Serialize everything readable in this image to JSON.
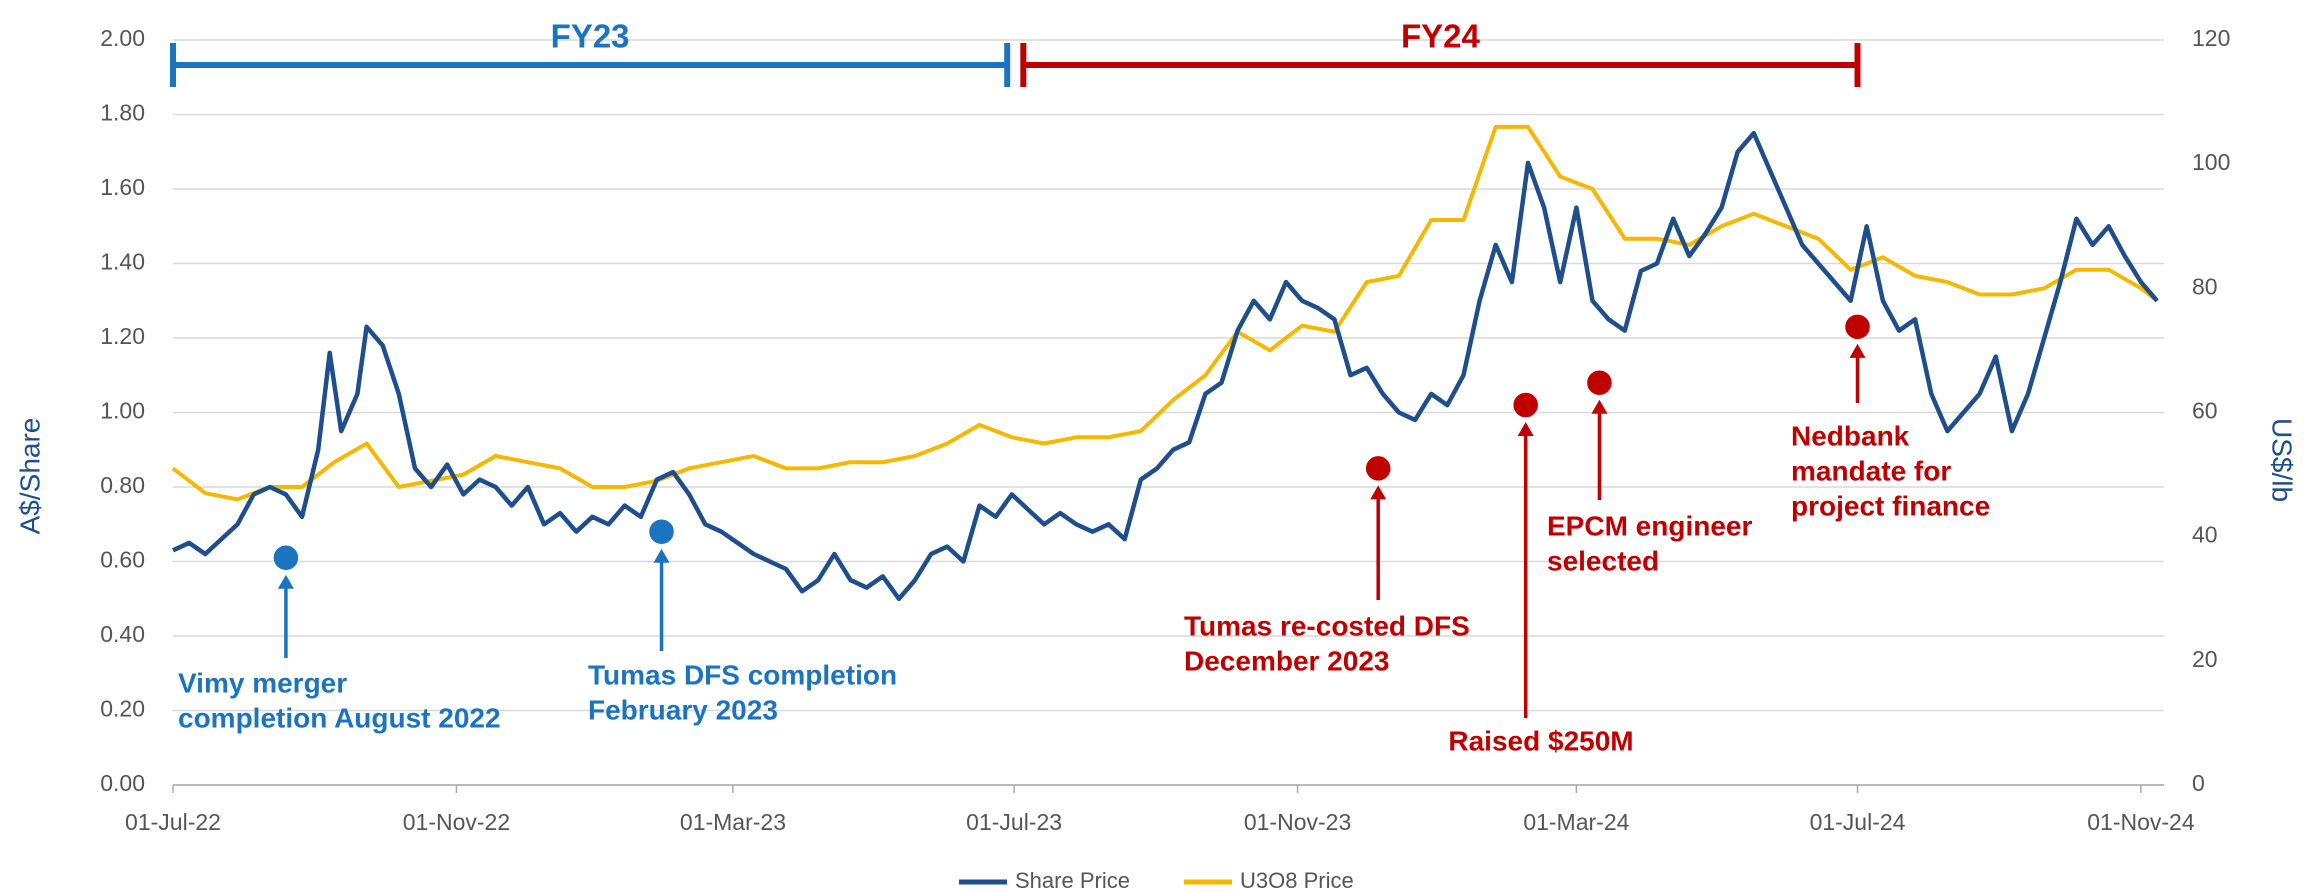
{
  "chart_data": {
    "type": "line",
    "ylabel": "A$/Share",
    "y2label": "US$/lb",
    "xlim": [
      "2022-07-01",
      "2024-11-11"
    ],
    "xticks": [
      {
        "value": "2022-07-01",
        "label": "01-Jul-22"
      },
      {
        "value": "2022-11-01",
        "label": "01-Nov-22"
      },
      {
        "value": "2023-03-01",
        "label": "01-Mar-23"
      },
      {
        "value": "2023-07-01",
        "label": "01-Jul-23"
      },
      {
        "value": "2023-11-01",
        "label": "01-Nov-23"
      },
      {
        "value": "2024-03-01",
        "label": "01-Mar-24"
      },
      {
        "value": "2024-07-01",
        "label": "01-Jul-24"
      },
      {
        "value": "2024-11-01",
        "label": "01-Nov-24"
      }
    ],
    "ylim": [
      0,
      2
    ],
    "yticks": [
      {
        "value": 0,
        "label": "0.00"
      },
      {
        "value": 0.2,
        "label": "0.20"
      },
      {
        "value": 0.4,
        "label": "0.40"
      },
      {
        "value": 0.6,
        "label": "0.60"
      },
      {
        "value": 0.8,
        "label": "0.80"
      },
      {
        "value": 1,
        "label": "1.00"
      },
      {
        "value": 1.2,
        "label": "1.20"
      },
      {
        "value": 1.4,
        "label": "1.40"
      },
      {
        "value": 1.6,
        "label": "1.60"
      },
      {
        "value": 1.8,
        "label": "1.80"
      },
      {
        "value": 2,
        "label": "2.00"
      }
    ],
    "y2lim": [
      0,
      120
    ],
    "y2ticks": [
      0,
      20,
      40,
      60,
      80,
      100,
      120
    ],
    "grid": true,
    "legend": "bottom",
    "series": [
      {
        "name": "Share Price",
        "color": "#1f4e8c",
        "axis": "y",
        "x": [
          "2022-07-01",
          "2022-07-08",
          "2022-07-15",
          "2022-07-22",
          "2022-07-29",
          "2022-08-05",
          "2022-08-12",
          "2022-08-19",
          "2022-08-26",
          "2022-09-02",
          "2022-09-07",
          "2022-09-12",
          "2022-09-19",
          "2022-09-23",
          "2022-09-30",
          "2022-10-07",
          "2022-10-14",
          "2022-10-21",
          "2022-10-28",
          "2022-11-04",
          "2022-11-11",
          "2022-11-18",
          "2022-11-25",
          "2022-12-02",
          "2022-12-09",
          "2022-12-16",
          "2022-12-23",
          "2022-12-30",
          "2023-01-06",
          "2023-01-13",
          "2023-01-20",
          "2023-01-27",
          "2023-02-03",
          "2023-02-10",
          "2023-02-17",
          "2023-02-24",
          "2023-03-03",
          "2023-03-10",
          "2023-03-17",
          "2023-03-24",
          "2023-03-31",
          "2023-04-07",
          "2023-04-14",
          "2023-04-21",
          "2023-04-28",
          "2023-05-05",
          "2023-05-12",
          "2023-05-19",
          "2023-05-26",
          "2023-06-02",
          "2023-06-09",
          "2023-06-16",
          "2023-06-23",
          "2023-06-30",
          "2023-07-07",
          "2023-07-14",
          "2023-07-21",
          "2023-07-28",
          "2023-08-04",
          "2023-08-11",
          "2023-08-18",
          "2023-08-25",
          "2023-09-01",
          "2023-09-08",
          "2023-09-15",
          "2023-09-22",
          "2023-09-29",
          "2023-10-06",
          "2023-10-13",
          "2023-10-20",
          "2023-10-27",
          "2023-11-03",
          "2023-11-10",
          "2023-11-17",
          "2023-11-24",
          "2023-12-01",
          "2023-12-08",
          "2023-12-15",
          "2023-12-22",
          "2023-12-29",
          "2024-01-05",
          "2024-01-12",
          "2024-01-19",
          "2024-01-26",
          "2024-02-02",
          "2024-02-09",
          "2024-02-16",
          "2024-02-23",
          "2024-03-01",
          "2024-03-08",
          "2024-03-15",
          "2024-03-22",
          "2024-03-29",
          "2024-04-05",
          "2024-04-12",
          "2024-04-19",
          "2024-04-26",
          "2024-05-03",
          "2024-05-10",
          "2024-05-17",
          "2024-05-24",
          "2024-05-31",
          "2024-06-07",
          "2024-06-14",
          "2024-06-21",
          "2024-06-28",
          "2024-07-05",
          "2024-07-12",
          "2024-07-19",
          "2024-07-26",
          "2024-08-02",
          "2024-08-09",
          "2024-08-16",
          "2024-08-23",
          "2024-08-30",
          "2024-09-06",
          "2024-09-13",
          "2024-09-20",
          "2024-09-27",
          "2024-10-04",
          "2024-10-11",
          "2024-10-18",
          "2024-10-25",
          "2024-11-01",
          "2024-11-08"
        ],
        "values": [
          0.63,
          0.65,
          0.62,
          0.66,
          0.7,
          0.78,
          0.8,
          0.78,
          0.72,
          0.9,
          1.16,
          0.95,
          1.05,
          1.23,
          1.18,
          1.05,
          0.85,
          0.8,
          0.86,
          0.78,
          0.82,
          0.8,
          0.75,
          0.8,
          0.7,
          0.73,
          0.68,
          0.72,
          0.7,
          0.75,
          0.72,
          0.82,
          0.84,
          0.78,
          0.7,
          0.68,
          0.65,
          0.62,
          0.6,
          0.58,
          0.52,
          0.55,
          0.62,
          0.55,
          0.53,
          0.56,
          0.5,
          0.55,
          0.62,
          0.64,
          0.6,
          0.75,
          0.72,
          0.78,
          0.74,
          0.7,
          0.73,
          0.7,
          0.68,
          0.7,
          0.66,
          0.82,
          0.85,
          0.9,
          0.92,
          1.05,
          1.08,
          1.22,
          1.3,
          1.25,
          1.35,
          1.3,
          1.28,
          1.25,
          1.1,
          1.12,
          1.05,
          1.0,
          0.98,
          1.05,
          1.02,
          1.1,
          1.3,
          1.45,
          1.35,
          1.67,
          1.55,
          1.35,
          1.55,
          1.3,
          1.25,
          1.22,
          1.38,
          1.4,
          1.52,
          1.42,
          1.48,
          1.55,
          1.7,
          1.75,
          1.65,
          1.55,
          1.45,
          1.4,
          1.35,
          1.3,
          1.5,
          1.3,
          1.22,
          1.25,
          1.05,
          0.95,
          1.0,
          1.05,
          1.15,
          0.95,
          1.05,
          1.2,
          1.35,
          1.52,
          1.45,
          1.5,
          1.42,
          1.35,
          1.3
        ]
      },
      {
        "name": "U3O8 Price",
        "color": "#f5b800",
        "axis": "y2",
        "x": [
          "2022-07-01",
          "2022-07-15",
          "2022-07-29",
          "2022-08-12",
          "2022-08-26",
          "2022-09-09",
          "2022-09-23",
          "2022-10-07",
          "2022-10-21",
          "2022-11-04",
          "2022-11-18",
          "2022-12-02",
          "2022-12-16",
          "2022-12-30",
          "2023-01-13",
          "2023-01-27",
          "2023-02-10",
          "2023-02-24",
          "2023-03-10",
          "2023-03-24",
          "2023-04-07",
          "2023-04-21",
          "2023-05-05",
          "2023-05-19",
          "2023-06-02",
          "2023-06-16",
          "2023-06-30",
          "2023-07-14",
          "2023-07-28",
          "2023-08-11",
          "2023-08-25",
          "2023-09-08",
          "2023-09-22",
          "2023-10-06",
          "2023-10-20",
          "2023-11-03",
          "2023-11-17",
          "2023-12-01",
          "2023-12-15",
          "2023-12-29",
          "2024-01-12",
          "2024-01-26",
          "2024-02-09",
          "2024-02-23",
          "2024-03-08",
          "2024-03-22",
          "2024-04-05",
          "2024-04-19",
          "2024-05-03",
          "2024-05-17",
          "2024-05-31",
          "2024-06-14",
          "2024-06-28",
          "2024-07-12",
          "2024-07-26",
          "2024-08-09",
          "2024-08-23",
          "2024-09-06",
          "2024-09-20",
          "2024-10-04",
          "2024-10-18",
          "2024-11-01",
          "2024-11-08"
        ],
        "values": [
          51,
          47,
          46,
          48,
          48,
          52,
          55,
          48,
          49,
          50,
          53,
          52,
          51,
          48,
          48,
          49,
          51,
          52,
          53,
          51,
          51,
          52,
          52,
          53,
          55,
          58,
          56,
          55,
          56,
          56,
          57,
          62,
          66,
          73,
          70,
          74,
          73,
          81,
          82,
          91,
          91,
          106,
          106,
          98,
          96,
          88,
          88,
          87,
          90,
          92,
          90,
          88,
          83,
          85,
          82,
          81,
          79,
          79,
          80,
          83,
          83,
          80,
          78
        ]
      }
    ],
    "periods": [
      {
        "label": "FY23",
        "start": "2022-07-01",
        "end": "2023-06-28",
        "color": "#1a74c0"
      },
      {
        "label": "FY24",
        "start": "2023-07-05",
        "end": "2024-07-01",
        "color": "#c00000"
      }
    ],
    "annotations": [
      {
        "lines": [
          "Vimy merger",
          "completion August 2022"
        ],
        "x": "2022-08-19",
        "y": 0.61,
        "color": "#1a74c0"
      },
      {
        "lines": [
          "Tumas DFS completion",
          "February 2023"
        ],
        "x": "2023-01-29",
        "y": 0.68,
        "color": "#1a74c0"
      },
      {
        "lines": [
          "Tumas re-costed DFS",
          "December 2023"
        ],
        "x": "2023-12-06",
        "y": 0.85,
        "color": "#c00000"
      },
      {
        "lines": [
          "Raised $250M"
        ],
        "x": "2024-02-08",
        "y": 1.02,
        "color": "#c00000"
      },
      {
        "lines": [
          "EPCM engineer",
          "selected"
        ],
        "x": "2024-03-11",
        "y": 1.08,
        "color": "#c00000"
      },
      {
        "lines": [
          "Nedbank",
          "mandate for",
          "project finance"
        ],
        "x": "2024-07-01",
        "y": 1.23,
        "color": "#c00000"
      }
    ]
  }
}
